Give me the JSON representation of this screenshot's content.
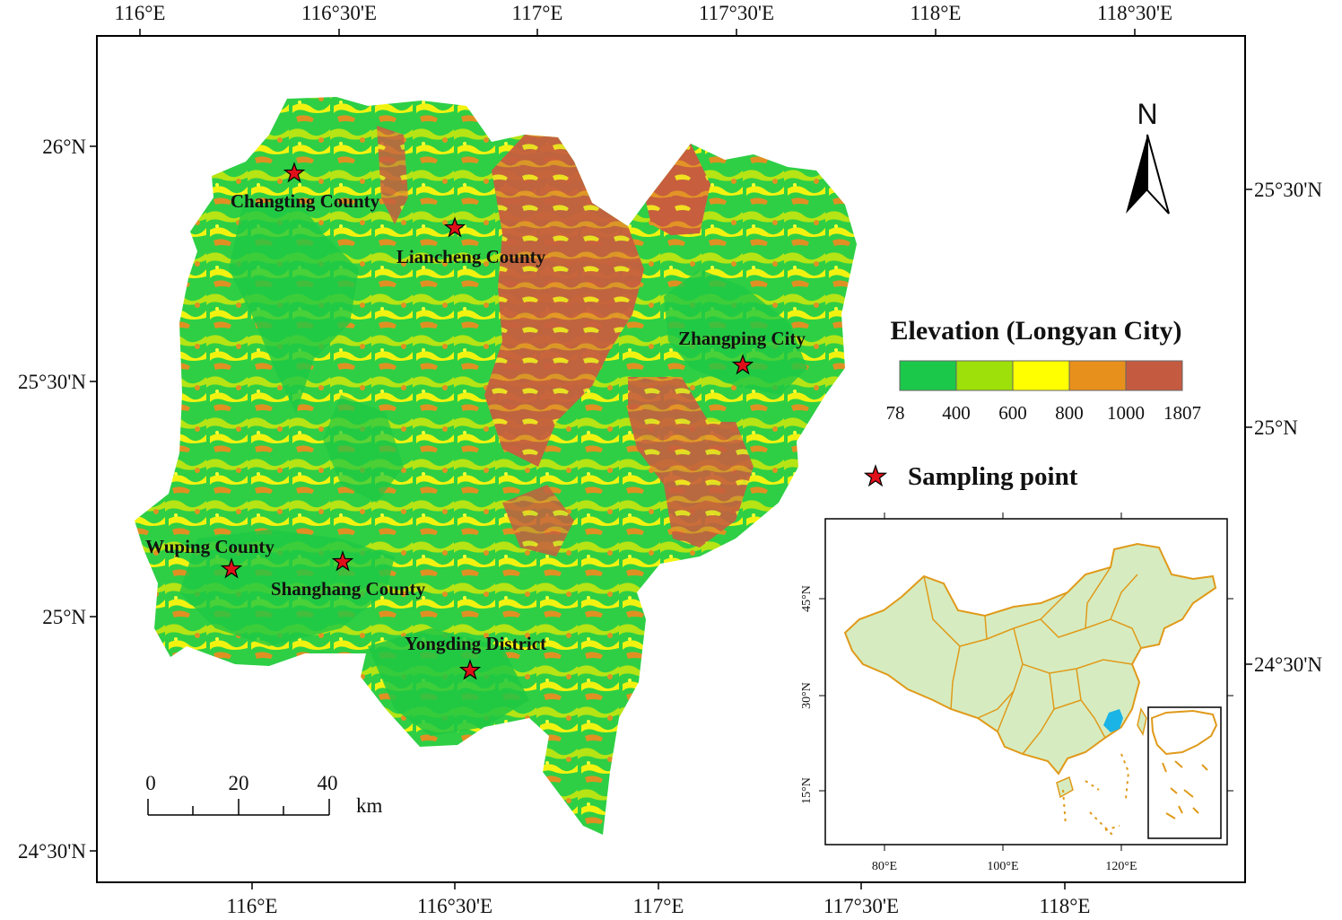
{
  "top_axis": [
    "116°E",
    "116°30'E",
    "117°E",
    "117°30'E",
    "118°E",
    "118°30'E"
  ],
  "bottom_axis": [
    "116°E",
    "116°30'E",
    "117°E",
    "117°30'E",
    "118°E"
  ],
  "left_axis": [
    "26°N",
    "25°30'N",
    "25°N",
    "24°30'N"
  ],
  "right_axis": [
    "25°30'N",
    "25°N",
    "24°30'N"
  ],
  "north_arrow": {
    "label": "N"
  },
  "legend": {
    "title": "Elevation (Longyan City)",
    "classes": [
      {
        "color": "#1cc84a"
      },
      {
        "color": "#9ee00a"
      },
      {
        "color": "#ffff00"
      },
      {
        "color": "#e8901c"
      },
      {
        "color": "#c45a40"
      }
    ],
    "breaks": [
      "78",
      "400",
      "600",
      "800",
      "1000",
      "1807"
    ]
  },
  "sampling": {
    "label": "Sampling point",
    "color": "#e0101a"
  },
  "sites": [
    {
      "name": "Changting County"
    },
    {
      "name": "Liancheng County"
    },
    {
      "name": "Zhangping City"
    },
    {
      "name": "Wuping County"
    },
    {
      "name": "Shanghang County"
    },
    {
      "name": "Yongding District"
    }
  ],
  "scale_bar": {
    "ticks": [
      "0",
      "20",
      "40"
    ],
    "unit": "km"
  },
  "inset": {
    "lon_labels": [
      "80°E",
      "100°E",
      "120°E"
    ],
    "lat_labels": [
      "45°N",
      "30°N",
      "15°N"
    ],
    "china_fill": "#d6ecc0",
    "border_color": "#e09a1a",
    "study_area_color": "#1ab4e6"
  }
}
